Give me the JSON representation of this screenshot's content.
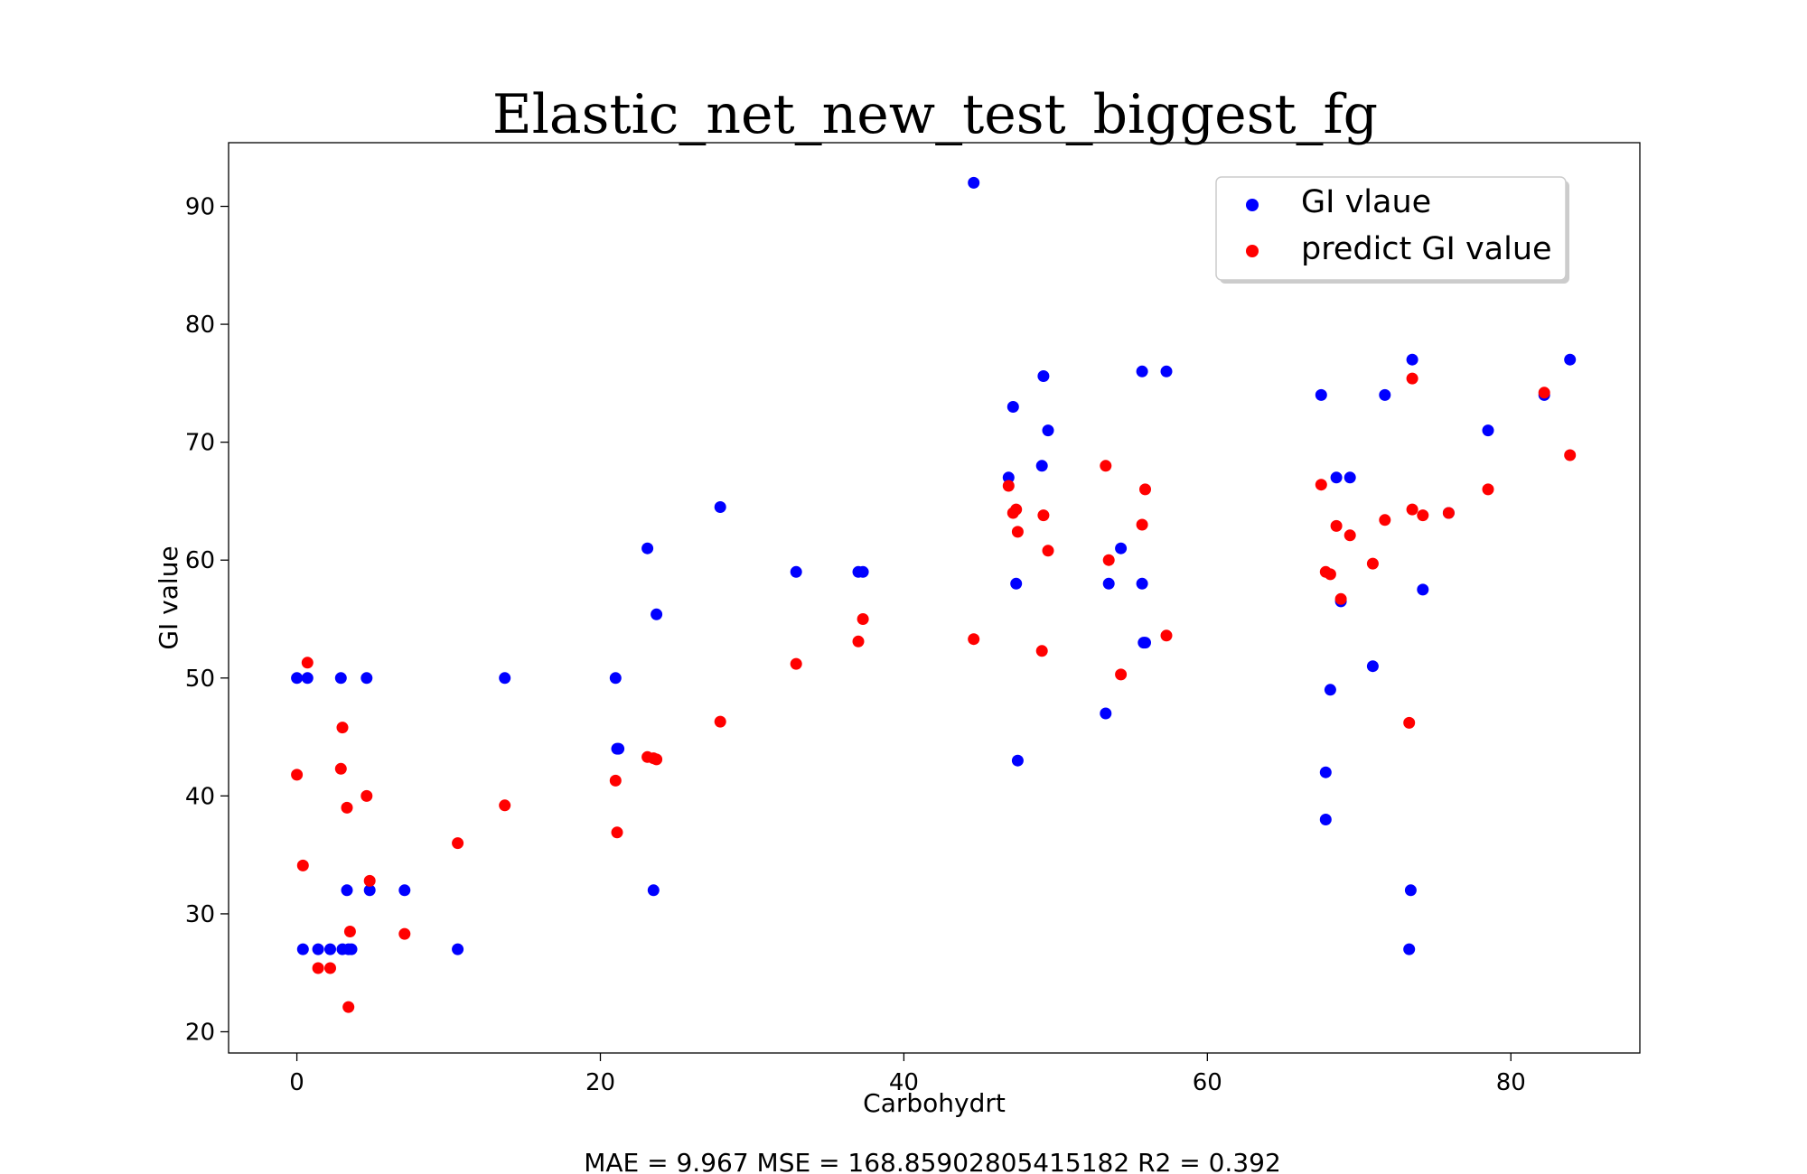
{
  "chart_data": {
    "type": "scatter",
    "title": "Elastic_net_new_test_biggest_fg",
    "xlabel": "Carbohydrt",
    "ylabel": "GI value",
    "xlim": [
      -4.5,
      88.5
    ],
    "ylim": [
      18.2,
      95.4
    ],
    "xticks": [
      0,
      20,
      40,
      60,
      80
    ],
    "yticks": [
      20,
      30,
      40,
      50,
      60,
      70,
      80,
      90
    ],
    "grid": false,
    "legend_position": "top-right",
    "footer": "MAE = 9.967 MSE = 168.85902805415182 R2 = 0.392",
    "series": [
      {
        "name": "GI vlaue",
        "color": "#0000ff",
        "x": [
          0,
          0.4,
          0.7,
          1.4,
          2.2,
          2.9,
          3.0,
          3.3,
          3.4,
          3.6,
          4.6,
          4.8,
          7.1,
          10.6,
          13.7,
          21.0,
          21.1,
          21.2,
          23.1,
          23.5,
          23.7,
          27.9,
          32.9,
          37.0,
          37.3,
          44.6,
          46.9,
          47.2,
          47.4,
          47.5,
          49.1,
          49.2,
          49.5,
          53.3,
          53.5,
          54.3,
          55.7,
          55.7,
          55.8,
          55.9,
          57.3,
          67.5,
          67.8,
          67.8,
          68.1,
          68.5,
          68.8,
          69.4,
          70.9,
          71.7,
          73.3,
          73.4,
          73.5,
          74.2,
          75.9,
          78.5,
          82.2,
          83.9
        ],
        "y": [
          50,
          27,
          50,
          27,
          27,
          50,
          27,
          32,
          27,
          27,
          50,
          32,
          32,
          27,
          50,
          50,
          44,
          44,
          61,
          32,
          55.4,
          64.5,
          59,
          59,
          59,
          92,
          67,
          73,
          58,
          43,
          68,
          75.6,
          71,
          47,
          58,
          61,
          58,
          76,
          53,
          53,
          76,
          74,
          42,
          38,
          49,
          67,
          56.5,
          67,
          51,
          74,
          27,
          32,
          77,
          57.5,
          64,
          71,
          74,
          77
        ]
      },
      {
        "name": "predict GI value",
        "color": "#ff0000",
        "x": [
          0,
          0.4,
          0.7,
          1.4,
          2.2,
          2.9,
          3.0,
          3.3,
          3.4,
          3.5,
          4.6,
          4.8,
          7.1,
          10.6,
          13.7,
          21.0,
          21.1,
          23.1,
          23.5,
          23.7,
          27.9,
          32.9,
          37.0,
          37.3,
          44.6,
          46.9,
          47.2,
          47.4,
          47.5,
          49.1,
          49.2,
          49.5,
          53.3,
          53.5,
          54.3,
          55.7,
          55.9,
          57.3,
          67.5,
          67.8,
          68.1,
          68.5,
          68.8,
          69.4,
          70.9,
          71.7,
          73.3,
          73.5,
          73.5,
          74.2,
          75.9,
          78.5,
          82.2,
          83.9
        ],
        "y": [
          41.8,
          34.1,
          51.3,
          25.4,
          25.4,
          42.3,
          45.8,
          39.0,
          22.1,
          28.5,
          40.0,
          32.8,
          28.3,
          36.0,
          39.2,
          41.3,
          36.9,
          43.3,
          43.2,
          43.1,
          46.3,
          51.2,
          53.1,
          55.0,
          53.3,
          66.3,
          64.0,
          64.3,
          62.4,
          52.3,
          63.8,
          60.8,
          68.0,
          60.0,
          50.3,
          63.0,
          66.0,
          53.6,
          66.4,
          59.0,
          58.8,
          62.9,
          56.7,
          62.1,
          59.7,
          63.4,
          46.2,
          75.4,
          64.3,
          63.8,
          64.0,
          66.0,
          74.2,
          68.9
        ]
      }
    ]
  }
}
